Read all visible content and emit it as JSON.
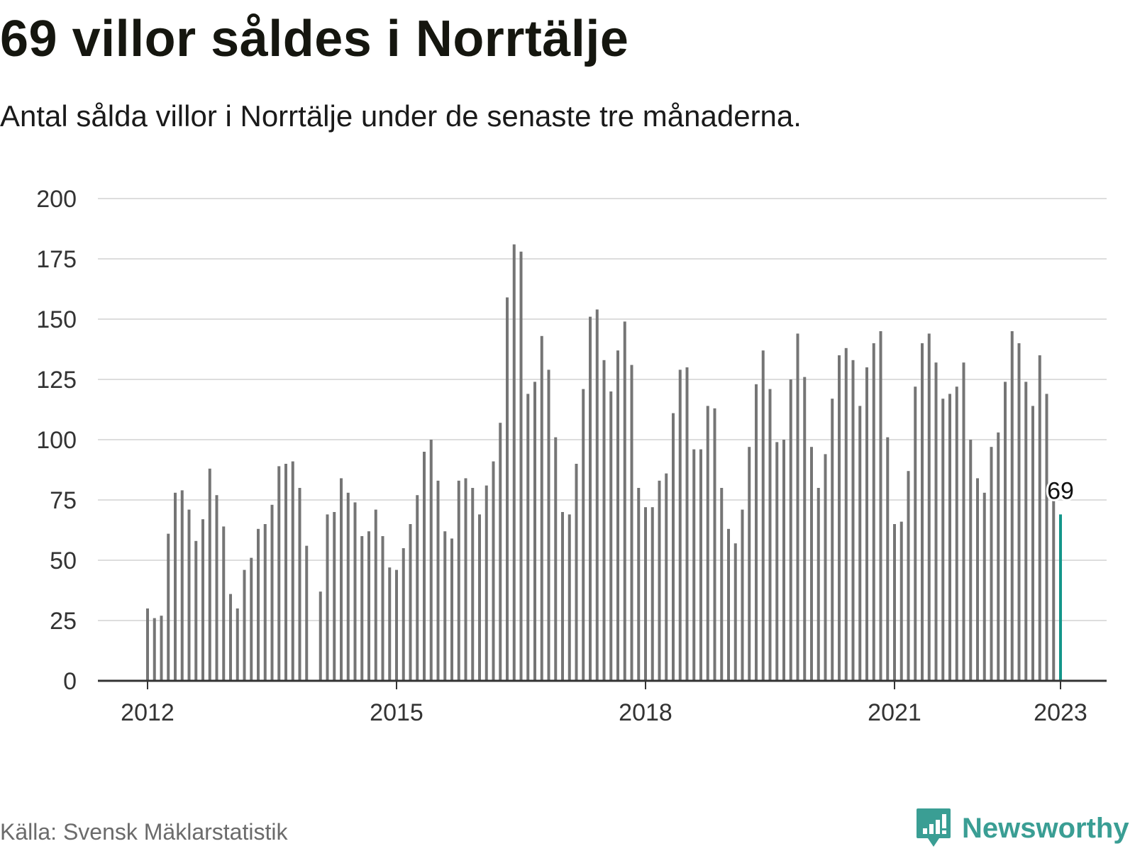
{
  "title": "69 villor såldes i Norrtälje",
  "subtitle": "Antal sålda villor i Norrtälje under de senaste tre månaderna.",
  "source": "Källa: Svensk Mäklarstatistik",
  "brand": {
    "name": "Newsworthy",
    "icon": "bar-chart-speech-bubble-icon",
    "color": "#3a9e94"
  },
  "colors": {
    "bar": "#757575",
    "highlight": "#14968a",
    "grid": "#dddddd",
    "axis": "#333333"
  },
  "chart_data": {
    "type": "bar",
    "title": "69 villor såldes i Norrtälje",
    "xlabel": "",
    "ylabel": "",
    "ylim": [
      0,
      200
    ],
    "yticks": [
      0,
      25,
      50,
      75,
      100,
      125,
      150,
      175,
      200
    ],
    "xticks": [
      {
        "label": "2012",
        "index": 0
      },
      {
        "label": "2015",
        "index": 36
      },
      {
        "label": "2018",
        "index": 72
      },
      {
        "label": "2021",
        "index": 108
      },
      {
        "label": "2023",
        "index": 132
      }
    ],
    "start": "2012-01",
    "frequency": "monthly",
    "grid": true,
    "legend": "none",
    "values": [
      30,
      26,
      27,
      61,
      78,
      79,
      71,
      58,
      67,
      88,
      77,
      64,
      36,
      30,
      46,
      51,
      63,
      65,
      73,
      89,
      90,
      91,
      80,
      56,
      null,
      37,
      69,
      70,
      84,
      78,
      74,
      60,
      62,
      71,
      60,
      47,
      46,
      55,
      65,
      77,
      95,
      100,
      83,
      62,
      59,
      83,
      84,
      80,
      69,
      81,
      91,
      107,
      159,
      181,
      178,
      119,
      124,
      143,
      129,
      101,
      70,
      69,
      90,
      121,
      151,
      154,
      133,
      120,
      137,
      149,
      131,
      80,
      72,
      72,
      83,
      86,
      111,
      129,
      130,
      96,
      96,
      114,
      113,
      80,
      63,
      57,
      71,
      97,
      123,
      137,
      121,
      99,
      100,
      125,
      144,
      126,
      97,
      80,
      94,
      117,
      135,
      138,
      133,
      114,
      130,
      140,
      145,
      101,
      65,
      66,
      87,
      122,
      140,
      144,
      132,
      117,
      119,
      122,
      132,
      100,
      84,
      78,
      97,
      103,
      124,
      145,
      140,
      124,
      114,
      135,
      119,
      75,
      69
    ],
    "highlight": {
      "index": 132,
      "label": "69",
      "value": 69
    }
  }
}
